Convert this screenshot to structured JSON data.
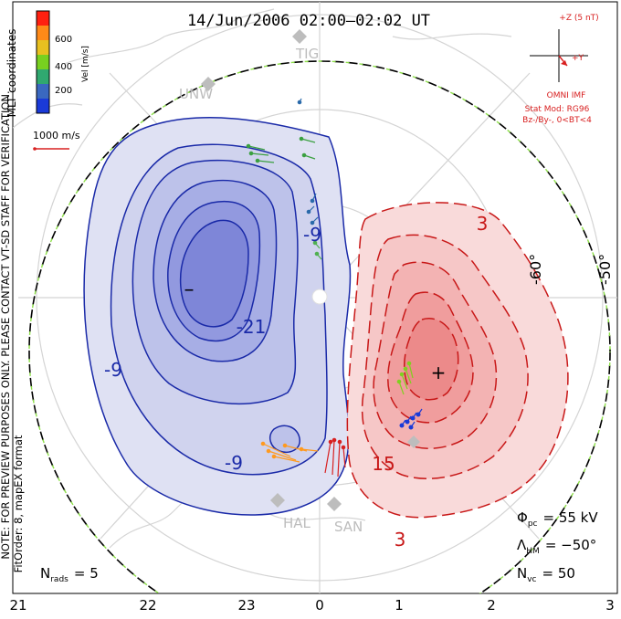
{
  "title": "14/Jun/2006 02:00–02:02 UT",
  "colorbar": {
    "label": "Vel [m/s]",
    "ticks": [
      "600",
      "400",
      "200"
    ],
    "colors": [
      "#ff2010",
      "#ff8a18",
      "#e8c020",
      "#78d020",
      "#30a870",
      "#3a68c0",
      "#1a3ad8"
    ]
  },
  "coords_label": "MLT coordinates",
  "ref_vector": "1000 m/s",
  "side_note_1": "NOTE: FOR PREVIEW PURPOSES ONLY. PLEASE CONTACT VT-SD STAFF FOR VERIFICATION.",
  "side_note_2": "FitOrder: 8, mapEX format",
  "imf": {
    "scale": "+Z (5 nT)",
    "y_label": "+Y",
    "source": "OMNI IMF",
    "stat_mod": "Stat Mod: RG96",
    "bin": "Bz-/By-, 0<BT<4"
  },
  "stations": [
    "TIG",
    "UNW",
    "HAL",
    "SAN"
  ],
  "lat_labels": [
    "-60°",
    "-50°"
  ],
  "contour_labels": [
    "-9",
    "-21",
    "-9",
    "-9",
    "3",
    "15",
    "3"
  ],
  "min_marker": "–",
  "max_marker": "+",
  "stats": {
    "pcp_symbol": "Φ",
    "pcp_sub": "pc",
    "pcp_value": "= 55 kV",
    "hm_symbol": "Λ",
    "hm_sub": "HM",
    "hm_value": "= −50°",
    "nvc_symbol": "N",
    "nvc_sub": "vc",
    "nvc_value": "= 50",
    "nrads_symbol": "N",
    "nrads_sub": "rads",
    "nrads_value": "= 5"
  },
  "mlt_ticks": [
    "21",
    "22",
    "23",
    "0",
    "1",
    "2",
    "3"
  ]
}
